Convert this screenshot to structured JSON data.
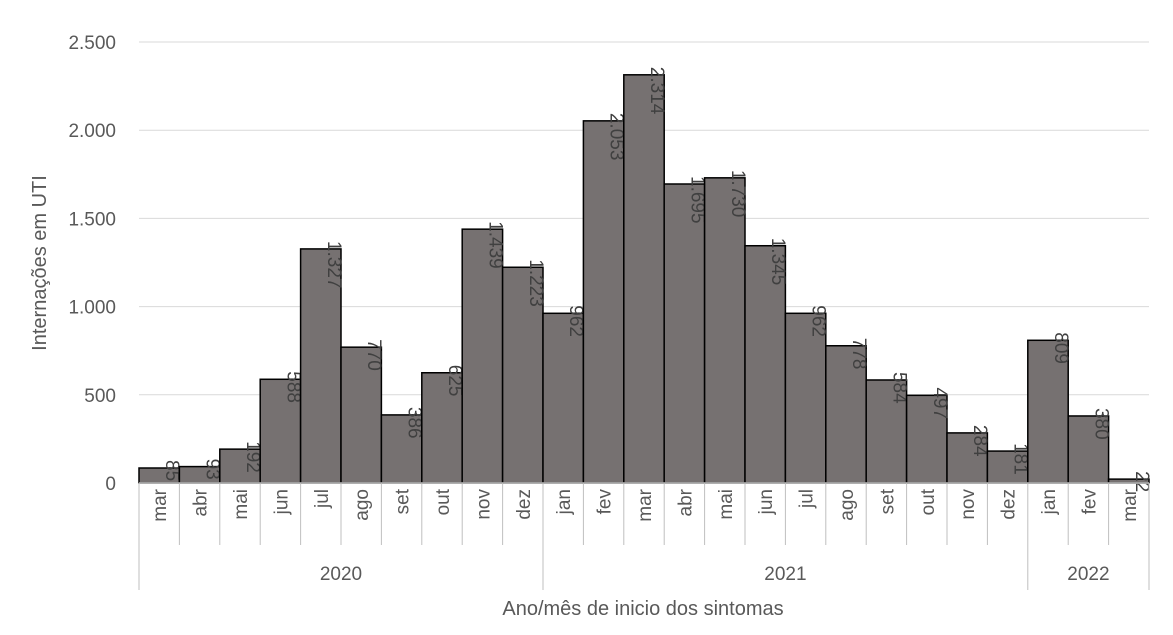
{
  "chart_data": {
    "type": "bar",
    "ylabel": "Internações em UTI",
    "xlabel": "Ano/mês de inicio dos sintomas",
    "ylim": [
      0,
      2500
    ],
    "yticks": [
      {
        "value": 0,
        "label": "0"
      },
      {
        "value": 500,
        "label": "500"
      },
      {
        "value": 1000,
        "label": "1.000"
      },
      {
        "value": 1500,
        "label": "1.500"
      },
      {
        "value": 2000,
        "label": "2.000"
      },
      {
        "value": 2500,
        "label": "2.500"
      }
    ],
    "grid": true,
    "categories": [
      "mar",
      "abr",
      "mai",
      "jun",
      "jul",
      "ago",
      "set",
      "out",
      "nov",
      "dez",
      "jan",
      "fev",
      "mar",
      "abr",
      "mai",
      "jun",
      "jul",
      "ago",
      "set",
      "out",
      "nov",
      "dez",
      "jan",
      "fev",
      "mar"
    ],
    "values": [
      85,
      93,
      192,
      588,
      1327,
      770,
      386,
      625,
      1439,
      1223,
      962,
      2053,
      2314,
      1695,
      1730,
      1345,
      962,
      778,
      584,
      497,
      284,
      181,
      809,
      380,
      22
    ],
    "value_labels": [
      "85",
      "93",
      "192",
      "588",
      "1.327",
      "770",
      "386",
      "625",
      "1.439",
      "1.223",
      "962",
      "2.053",
      "2.314",
      "1.695",
      "1.730",
      "1.345",
      "962",
      "778",
      "584",
      "497",
      "284",
      "181",
      "809",
      "380",
      "22"
    ],
    "groups": [
      {
        "label": "2020",
        "count": 10
      },
      {
        "label": "2021",
        "count": 12
      },
      {
        "label": "2022",
        "count": 3
      }
    ],
    "colors": {
      "bar_fill": "#767171",
      "bar_stroke": "#000000",
      "grid": "#d9d9d9",
      "axis": "#bfbfbf",
      "text": "#595959"
    }
  }
}
